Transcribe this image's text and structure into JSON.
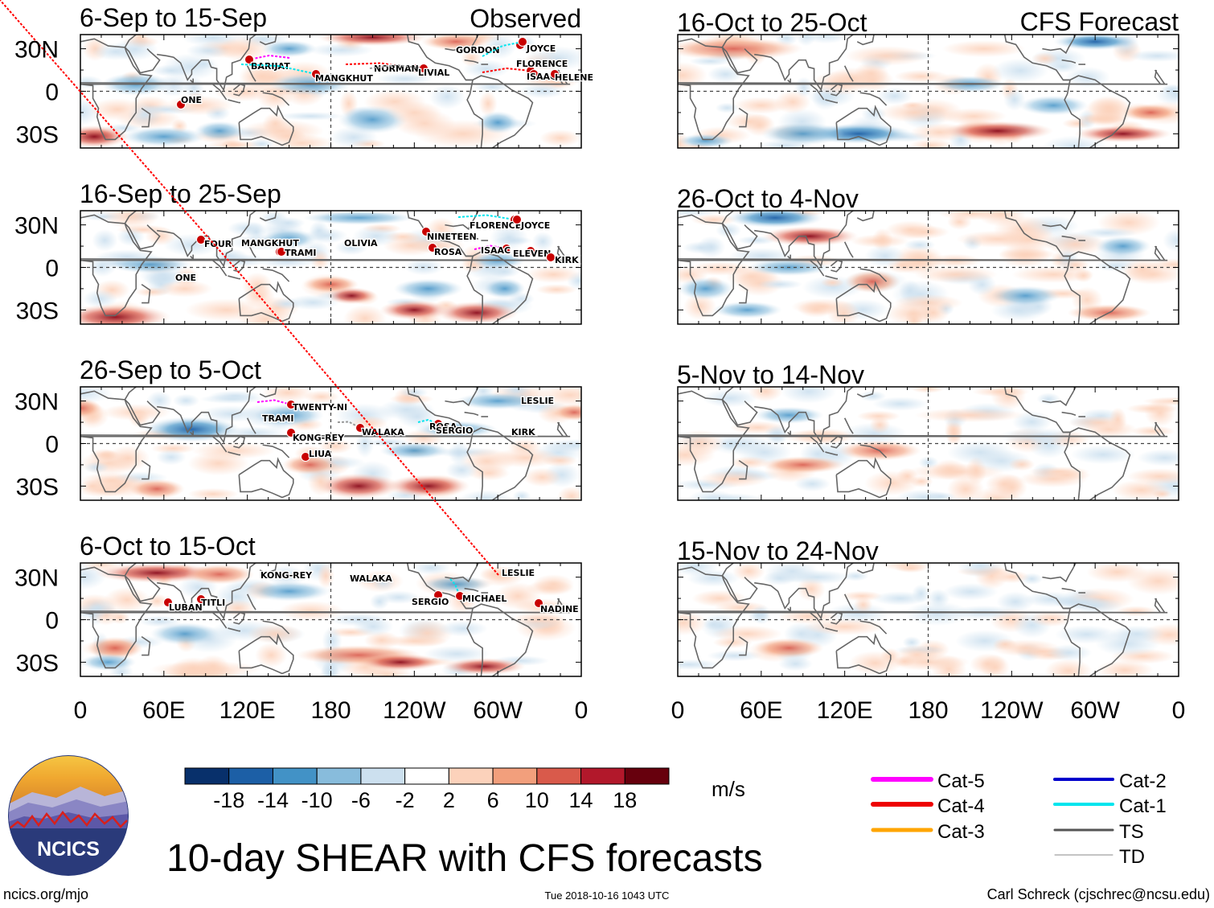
{
  "title": "10-day SHEAR with CFS forecasts",
  "observed_label": "Observed",
  "forecast_label": "CFS Forecast",
  "lat_labels": [
    "30N",
    "0",
    "30S"
  ],
  "lon_labels": [
    "0",
    "60E",
    "120E",
    "180",
    "120W",
    "60W",
    "0"
  ],
  "observed_panels": [
    {
      "title": "6-Sep to 15-Sep",
      "storms": [
        "BARIJAT",
        "MANGKHUT",
        "NORMAN",
        "LIVIAL",
        "GORDON",
        "JOYCE",
        "FLORENCE",
        "ISAAC",
        "HELENE",
        "ONE"
      ]
    },
    {
      "title": "16-Sep to 25-Sep",
      "storms": [
        "FOUR",
        "MANGKHUT",
        "TRAMI",
        "OLIVIA",
        "NINETEEN",
        "FLORENCE",
        "JOYCE",
        "ROSA",
        "ISAAC",
        "ELEVEN",
        "KIRK",
        "ONE"
      ]
    },
    {
      "title": "26-Sep to 5-Oct",
      "storms": [
        "TWENTY-NI",
        "TRAMI",
        "KONG-REY",
        "WALAKA",
        "LIUA",
        "ROSA",
        "SERGIO",
        "KIRK",
        "LESLIE"
      ]
    },
    {
      "title": "6-Oct to 15-Oct",
      "storms": [
        "KONG-REY",
        "WALAKA",
        "LUBAN",
        "TITLI",
        "SERGIO",
        "MICHAEL",
        "LESLIE",
        "NADINE"
      ]
    }
  ],
  "forecast_panels": [
    {
      "title": "16-Oct to 25-Oct"
    },
    {
      "title": "26-Oct to 4-Nov"
    },
    {
      "title": "5-Nov to 14-Nov"
    },
    {
      "title": "15-Nov to 24-Nov"
    }
  ],
  "colorbar": {
    "ticks": [
      "-18",
      "-14",
      "-10",
      "-6",
      "-2",
      "2",
      "6",
      "10",
      "14",
      "18"
    ],
    "colors": [
      "#08306b",
      "#1c5fa6",
      "#4292c6",
      "#88bcdc",
      "#cce0ef",
      "#ffffff",
      "#fcd2bb",
      "#f29f7c",
      "#d95a4b",
      "#b2182b",
      "#67000d"
    ],
    "units": "m/s"
  },
  "legend": [
    {
      "label": "Cat-5",
      "color": "#ff00ff",
      "width": 6
    },
    {
      "label": "Cat-2",
      "color": "#0000cc",
      "width": 4
    },
    {
      "label": "Cat-4",
      "color": "#ee0000",
      "width": 6
    },
    {
      "label": "Cat-1",
      "color": "#00e5ee",
      "width": 4
    },
    {
      "label": "Cat-3",
      "color": "#ffa500",
      "width": 5
    },
    {
      "label": "TS",
      "color": "#555555",
      "width": 3
    },
    {
      "label": "TD",
      "color": "#888888",
      "width": 1
    }
  ],
  "logo_text": "NCICS",
  "footer": {
    "left": "ncics.org/mjo",
    "center": "Tue 2018-10-16 1043 UTC",
    "right": "Carl Schreck (cjschrec@ncsu.edu)"
  }
}
